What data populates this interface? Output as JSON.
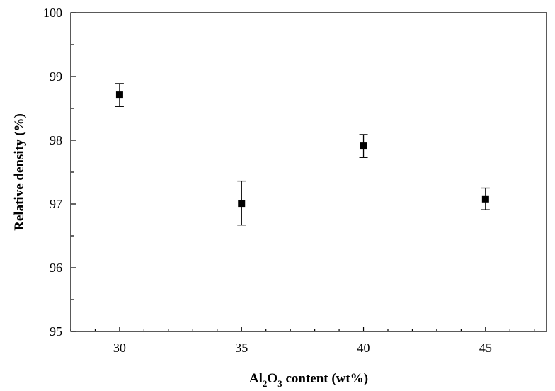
{
  "chart_data": {
    "type": "scatter",
    "title": "",
    "xlabel_parts": {
      "pre": "Al",
      "sub1": "2",
      "mid": "O",
      "sub2": "3",
      "post": " content (wt%)"
    },
    "ylabel": "Relative density (%)",
    "xlim": [
      28,
      47.5
    ],
    "ylim": [
      95,
      100
    ],
    "xticks": [
      30,
      35,
      40,
      45
    ],
    "xtick_labels": [
      "30",
      "35",
      "40",
      "45"
    ],
    "yticks": [
      95,
      96,
      97,
      98,
      99,
      100
    ],
    "ytick_labels": [
      "95",
      "96",
      "97",
      "98",
      "99",
      "100"
    ],
    "grid": false,
    "legend": "none",
    "marker_color": "#000000",
    "series": [
      {
        "x": [
          30,
          35,
          40,
          45
        ],
        "y": [
          98.71,
          97.01,
          97.91,
          97.08
        ],
        "err_low": [
          98.53,
          96.67,
          97.73,
          96.91
        ],
        "err_high": [
          98.89,
          97.36,
          98.09,
          97.25
        ]
      }
    ]
  }
}
